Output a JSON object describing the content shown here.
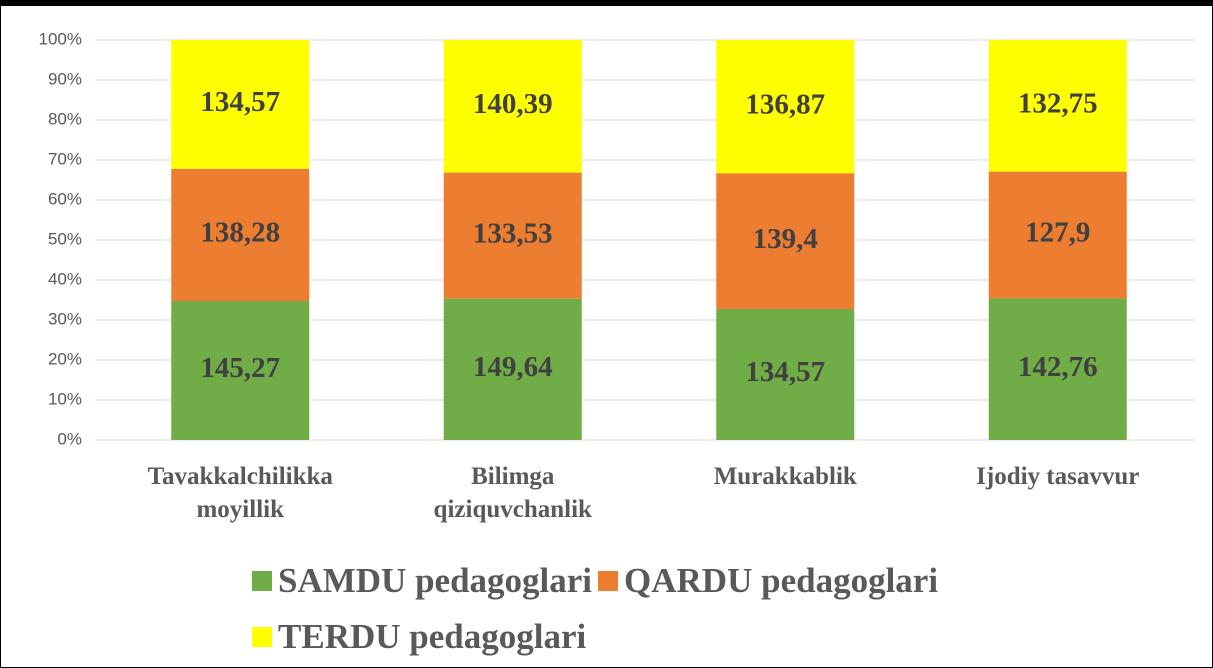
{
  "chart_data": {
    "type": "bar100",
    "categories": [
      "Tavakkalchilikka moyillik",
      "Bilimga qiziquvchanlik",
      "Murakkablik",
      "Ijodiy tasavvur"
    ],
    "series": [
      {
        "name": "SAMDU pedagoglari",
        "color": "#70ad47",
        "values": [
          145.27,
          149.64,
          134.57,
          142.76
        ],
        "value_labels": [
          "145,27",
          "149,64",
          "134,57",
          "142,76"
        ]
      },
      {
        "name": "QARDU pedagoglari",
        "color": "#ed7d31",
        "values": [
          138.28,
          133.53,
          139.4,
          127.9
        ],
        "value_labels": [
          "138,28",
          "133,53",
          "139,4",
          "127,9"
        ]
      },
      {
        "name": "TERDU pedagoglari",
        "color": "#ffff00",
        "values": [
          134.57,
          140.39,
          136.87,
          132.75
        ],
        "value_labels": [
          "134,57",
          "140,39",
          "136,87",
          "132,75"
        ]
      }
    ],
    "ylim": [
      0,
      100
    ],
    "yticks": [
      {
        "value": 0,
        "label": "0%"
      },
      {
        "value": 10,
        "label": "10%"
      },
      {
        "value": 20,
        "label": "20%"
      },
      {
        "value": 30,
        "label": "30%"
      },
      {
        "value": 40,
        "label": "40%"
      },
      {
        "value": 50,
        "label": "50%"
      },
      {
        "value": 60,
        "label": "60%"
      },
      {
        "value": 70,
        "label": "70%"
      },
      {
        "value": 80,
        "label": "80%"
      },
      {
        "value": 90,
        "label": "90%"
      },
      {
        "value": 100,
        "label": "100%"
      }
    ],
    "grid": true,
    "legend": "bottom"
  }
}
